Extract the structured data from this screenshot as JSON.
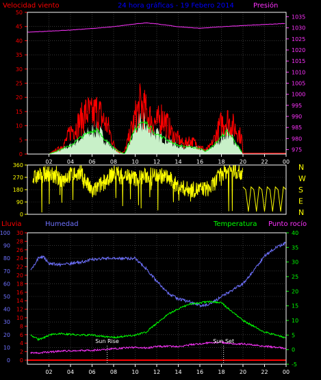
{
  "colors": {
    "background": "#000000",
    "grid": "#5a5a5a",
    "axis": "#ffffff",
    "wind": "#ff0000",
    "gust": "#00ff00",
    "wind_fill": "#c8f0c8",
    "pressure": "#ff33ff",
    "direction": "#ffff00",
    "humidity": "#6f72ff",
    "temperature": "#00ff00",
    "dewpoint": "#ff33ff",
    "rain": "#ff0000",
    "title": "#0000ff"
  },
  "chart_data": [
    {
      "id": "wind_pressure",
      "type": "line",
      "title": "24 hora gráficas - 19 Febero 2014",
      "left_label": "Velocidad viento",
      "right_label": "Presión",
      "x_ticks": [
        "02",
        "04",
        "06",
        "08",
        "10",
        "12",
        "14",
        "16",
        "18",
        "20",
        "22",
        "00"
      ],
      "y_left_ticks": [
        0,
        5,
        10,
        15,
        20,
        25,
        30,
        35,
        40,
        45,
        50
      ],
      "y_left_range": [
        0,
        50
      ],
      "y_right_ticks": [
        975,
        980,
        985,
        990,
        995,
        1000,
        1005,
        1010,
        1015,
        1020,
        1025,
        1030,
        1035
      ],
      "y_right_range": [
        973,
        1037
      ],
      "x_range": [
        0,
        24
      ],
      "pressure": {
        "x": [
          0,
          2,
          4,
          6,
          8,
          10,
          11,
          12,
          14,
          16,
          18,
          20,
          22,
          24
        ],
        "y": [
          1028,
          1028.5,
          1029,
          1029.7,
          1030.5,
          1031.8,
          1032.2,
          1031.8,
          1030.5,
          1029.8,
          1030.5,
          1031,
          1031.5,
          1032
        ]
      },
      "wind_peaks": {
        "x": [
          2,
          3,
          3.5,
          4,
          4.5,
          5,
          5.5,
          6,
          6.5,
          7,
          7.5,
          8,
          8.5,
          9,
          9.5,
          10,
          10.5,
          11,
          11.5,
          12,
          12.5,
          13,
          13.5,
          14,
          14.5,
          15,
          15.5,
          16,
          16.5,
          17,
          17.5,
          18,
          18.5,
          19,
          19.5,
          19.9,
          20
        ],
        "y": [
          0,
          3,
          6,
          12,
          14,
          18,
          22,
          20,
          23,
          18,
          14,
          5,
          1,
          1,
          10,
          19,
          26,
          22,
          18,
          16,
          20,
          15,
          10,
          8,
          5,
          7,
          6,
          4,
          2,
          4,
          10,
          16,
          18,
          15,
          12,
          8,
          0
        ]
      },
      "wind_avg": {
        "x": [
          2,
          3,
          4,
          5,
          6,
          6.5,
          7,
          7.5,
          8,
          9,
          9.5,
          10,
          10.5,
          11,
          11.5,
          12,
          13,
          14,
          15,
          16,
          16.5,
          17,
          17.5,
          18,
          18.5,
          19,
          19.5,
          20
        ],
        "y": [
          0,
          1.5,
          3,
          6,
          8,
          9,
          6,
          4,
          2,
          0,
          4,
          9,
          11,
          11,
          9,
          7,
          5,
          3,
          2.5,
          2,
          1,
          2,
          4,
          6,
          8,
          6,
          3,
          0
        ]
      }
    },
    {
      "id": "direction",
      "type": "line",
      "y_left_ticks": [
        0,
        90,
        180,
        270,
        360
      ],
      "y_left_range": [
        0,
        360
      ],
      "right_labels": [
        "N",
        "W",
        "S",
        "E",
        "N"
      ],
      "x_range": [
        0,
        24
      ],
      "direction_base": {
        "x": [
          0.5,
          1,
          2,
          3,
          4,
          5,
          6,
          7,
          8,
          9,
          10,
          11,
          12,
          13,
          14,
          15,
          16,
          17,
          18,
          19,
          20,
          21,
          22,
          23,
          24
        ],
        "y": [
          260,
          280,
          300,
          250,
          290,
          300,
          160,
          230,
          300,
          290,
          260,
          280,
          290,
          270,
          200,
          180,
          180,
          190,
          300,
          330,
          300,
          0,
          200,
          0,
          0
        ]
      }
    },
    {
      "id": "rain_humidity_temp",
      "type": "line",
      "labels": [
        "Lluvia",
        "Humedad",
        "Temperatura",
        "Punto rocío"
      ],
      "x_ticks": [
        "02",
        "04",
        "06",
        "08",
        "10",
        "12",
        "14",
        "16",
        "18",
        "20",
        "22",
        "00"
      ],
      "humidity_ticks": [
        0,
        10,
        20,
        30,
        40,
        50,
        60,
        70,
        80,
        90,
        100
      ],
      "humidity_range": [
        0,
        100
      ],
      "rain_ticks": [
        0,
        2,
        4,
        6,
        8,
        10,
        12,
        14,
        16,
        18,
        20,
        22,
        24,
        26,
        28,
        30
      ],
      "rain_range": [
        0,
        30
      ],
      "temp_ticks": [
        -5,
        0,
        5,
        10,
        15,
        20,
        25,
        30,
        35,
        40
      ],
      "temp_range": [
        -5,
        40
      ],
      "x_range": [
        0,
        24
      ],
      "annotations": [
        "Sun Rise",
        "Sun Set"
      ],
      "sunrise_x": 7.4,
      "sunset_x": 18.2,
      "humidity": {
        "x": [
          0.3,
          1,
          1.5,
          2,
          3,
          4,
          5,
          6,
          7,
          8,
          9,
          10,
          11,
          12,
          13,
          14,
          15,
          16,
          17,
          18,
          19,
          20,
          21,
          22,
          23,
          24
        ],
        "y": [
          70,
          80,
          81,
          76,
          75,
          76,
          77,
          79,
          80,
          80,
          80,
          80,
          72,
          62,
          53,
          48,
          46,
          43,
          44,
          50,
          55,
          60,
          70,
          82,
          88,
          92
        ]
      },
      "temperature": {
        "x": [
          0.3,
          1,
          1.5,
          2,
          3,
          4,
          5,
          6,
          7,
          8,
          9,
          10,
          11,
          12,
          13,
          14,
          15,
          16,
          17,
          18,
          19,
          20,
          21,
          22,
          23,
          24
        ],
        "y": [
          5,
          3.5,
          4,
          5,
          5.5,
          5.2,
          5,
          5,
          4.5,
          4.2,
          4.5,
          5,
          6,
          9,
          12,
          14,
          15.5,
          16,
          16.5,
          16,
          13,
          10,
          8,
          6,
          5,
          4
        ]
      },
      "dewpoint": {
        "x": [
          0.3,
          1,
          2,
          3,
          4,
          5,
          6,
          7,
          8,
          9,
          10,
          11,
          12,
          13,
          14,
          15,
          16,
          17,
          18,
          19,
          20,
          21,
          22,
          23,
          24
        ],
        "y": [
          -1,
          -1.2,
          -0.8,
          -0.5,
          -0.4,
          -0.3,
          -0.2,
          0,
          0.3,
          0.6,
          0.8,
          0.6,
          1,
          1.2,
          1,
          1.6,
          2,
          2.4,
          2.5,
          2,
          2,
          1.6,
          1.2,
          0.8,
          0.4
        ]
      },
      "rain": {
        "x": [
          0,
          24
        ],
        "y": [
          0,
          0
        ]
      }
    }
  ]
}
